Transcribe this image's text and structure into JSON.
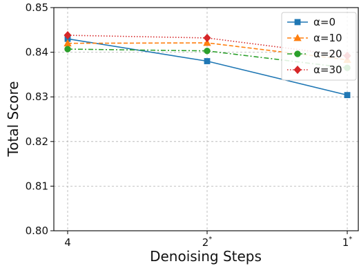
{
  "chart_data": {
    "type": "line",
    "xlabel": "Denoising Steps",
    "ylabel": "Total Score",
    "categories": [
      {
        "base": "4",
        "sup": ""
      },
      {
        "base": "2",
        "sup": "*"
      },
      {
        "base": "1",
        "sup": "*"
      }
    ],
    "ylim": [
      0.8,
      0.85
    ],
    "yticks": [
      "0.80",
      "0.81",
      "0.82",
      "0.83",
      "0.84",
      "0.85"
    ],
    "grid": true,
    "legend_position": "top-right",
    "series": [
      {
        "label": "α=0",
        "values": [
          0.843,
          0.838,
          0.8304
        ],
        "color": "#1f77b4",
        "marker": "square",
        "linestyle": "solid"
      },
      {
        "label": "α=10",
        "values": [
          0.842,
          0.8421,
          0.8383
        ],
        "color": "#ff7f0e",
        "marker": "triangle",
        "linestyle": "dashed"
      },
      {
        "label": "α=20",
        "values": [
          0.8407,
          0.8403,
          0.8365
        ],
        "color": "#2ca02c",
        "marker": "circle",
        "linestyle": "dashdot"
      },
      {
        "label": "α=30",
        "values": [
          0.8438,
          0.8432,
          0.8392
        ],
        "color": "#d62728",
        "marker": "diamond",
        "linestyle": "dotted"
      }
    ]
  }
}
